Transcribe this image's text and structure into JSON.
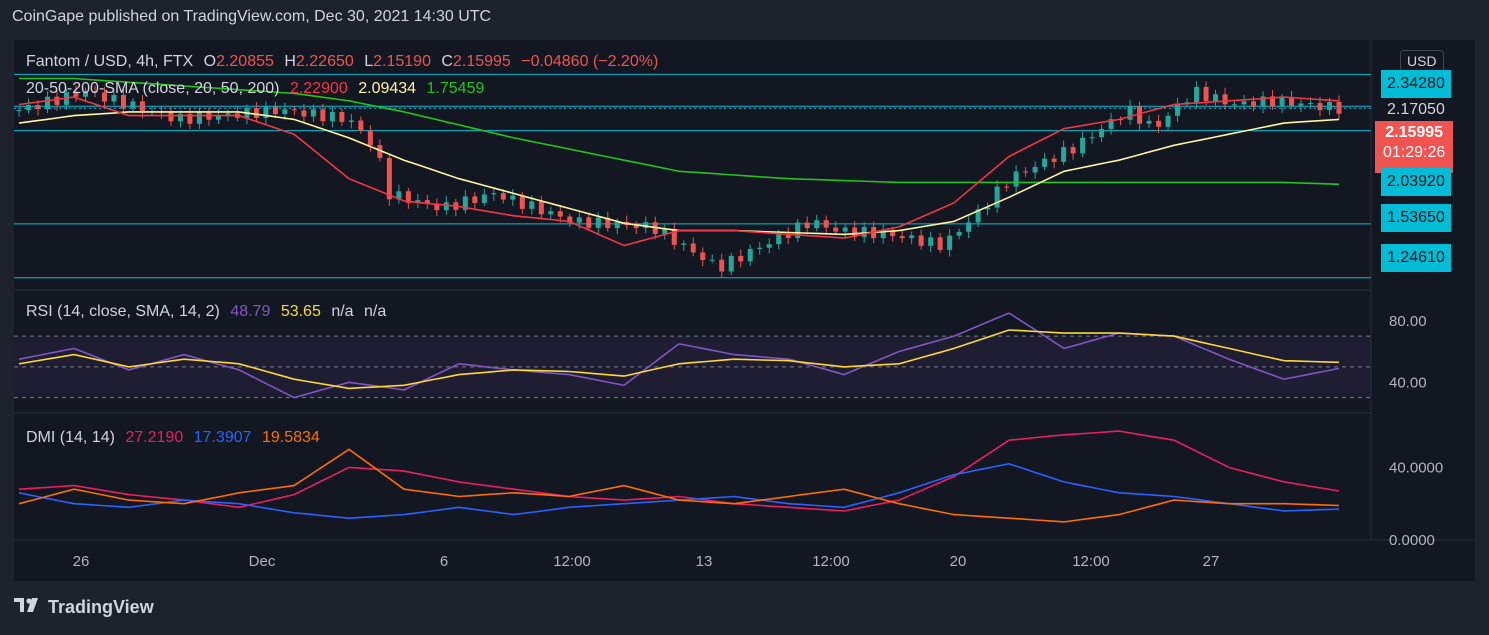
{
  "header": {
    "publisher": "CoinGape published on TradingView.com, Dec 30, 2021 14:30 UTC"
  },
  "footer": {
    "brand": "TradingView"
  },
  "symbol": {
    "title": "Fantom / USD, 4h, FTX",
    "open_label": "O",
    "open": "2.20855",
    "high_label": "H",
    "high": "2.22650",
    "low_label": "L",
    "low": "2.15190",
    "close_label": "C",
    "close": "2.15995",
    "change": "−0.04860 (−2.20%)"
  },
  "sma_legend": {
    "label": "20-50-200-SMA (close, 20, 50, 200)",
    "sma20": "2.22900",
    "sma50": "2.09434",
    "sma200": "1.75459"
  },
  "rsi_legend": {
    "label": "RSI (14, close, SMA, 14, 2)",
    "rsi": "48.79",
    "sma": "53.65",
    "na1": "n/a",
    "na2": "n/a"
  },
  "dmi_legend": {
    "label": "DMI (14, 14)",
    "adx": "27.2190",
    "plus_di": "17.3907",
    "minus_di": "19.5834"
  },
  "price_axis": {
    "currency": "USD",
    "levels": [
      "2.34280",
      "2.17050",
      "2.03920",
      "1.53650",
      "1.24610"
    ],
    "current_price": "2.15995",
    "countdown": "01:29:26"
  },
  "rsi_axis": [
    "80.00",
    "40.00"
  ],
  "dmi_axis": [
    "40.0000",
    "0.0000"
  ],
  "time_axis": [
    "26",
    "Dec",
    "6",
    "12:00",
    "13",
    "12:00",
    "20",
    "12:00",
    "27"
  ],
  "colors": {
    "up": "#26a69a",
    "down": "#ef5350",
    "sma20": "#f23645",
    "sma50": "#fff59d",
    "sma200": "#22c31b",
    "rsi": "#7e57c2",
    "rsi_sma": "#fdd835",
    "adx": "#e91e63",
    "plus_di": "#2962ff",
    "minus_di": "#ff6d00",
    "level_line": "#00bcd4",
    "level_tag": "#00bcd4",
    "current_tag": "#f05350"
  },
  "chart_data": {
    "type": "line",
    "instrument": "Fantom / USD, 4h, FTX",
    "price": {
      "anchors_x": [
        0,
        0.05,
        0.12,
        0.2,
        0.25,
        0.27,
        0.28,
        0.32,
        0.36,
        0.42,
        0.48,
        0.53,
        0.6,
        0.62,
        0.66,
        0.7,
        0.73,
        0.75,
        0.8,
        0.84,
        0.86,
        0.89,
        0.92,
        0.95,
        1.0
      ],
      "anchors_y": [
        2.15,
        2.25,
        2.1,
        2.15,
        2.1,
        1.95,
        1.7,
        1.62,
        1.7,
        1.55,
        1.52,
        1.3,
        1.55,
        1.5,
        1.48,
        1.42,
        1.62,
        1.78,
        1.95,
        2.15,
        2.05,
        2.25,
        2.18,
        2.2,
        2.16
      ],
      "candles": 140,
      "ylim": [
        1.18,
        2.42
      ]
    },
    "sma20_y": [
      2.18,
      2.22,
      2.12,
      2.12,
      2.12,
      2.02,
      1.78,
      1.66,
      1.63,
      1.58,
      1.55,
      1.42,
      1.5,
      1.5,
      1.48,
      1.46,
      1.52,
      1.65,
      1.9,
      2.05,
      2.1,
      2.18,
      2.2,
      2.22,
      2.2
    ],
    "sma50_y": [
      2.08,
      2.12,
      2.14,
      2.14,
      2.14,
      2.1,
      2.0,
      1.88,
      1.78,
      1.7,
      1.62,
      1.54,
      1.5,
      1.5,
      1.49,
      1.48,
      1.5,
      1.55,
      1.68,
      1.82,
      1.88,
      1.96,
      2.02,
      2.08,
      2.1
    ],
    "sma200_y": [
      2.32,
      2.32,
      2.3,
      2.28,
      2.26,
      2.24,
      2.2,
      2.14,
      2.07,
      2.0,
      1.94,
      1.88,
      1.82,
      1.8,
      1.78,
      1.77,
      1.76,
      1.76,
      1.76,
      1.76,
      1.76,
      1.76,
      1.76,
      1.76,
      1.75
    ],
    "rsi_y": [
      55,
      62,
      48,
      58,
      48,
      30,
      40,
      35,
      52,
      48,
      45,
      38,
      65,
      58,
      55,
      45,
      60,
      70,
      85,
      62,
      72,
      70,
      55,
      42,
      49
    ],
    "rsi_sma_y": [
      52,
      58,
      50,
      55,
      52,
      42,
      36,
      38,
      45,
      48,
      47,
      44,
      52,
      55,
      54,
      50,
      52,
      62,
      74,
      72,
      72,
      70,
      62,
      54,
      53
    ],
    "rsi_ylim": [
      20,
      100
    ],
    "adx_y": [
      28,
      30,
      25,
      22,
      18,
      25,
      40,
      38,
      32,
      28,
      24,
      22,
      24,
      20,
      18,
      16,
      22,
      35,
      55,
      58,
      60,
      55,
      40,
      32,
      27
    ],
    "plus_di_y": [
      26,
      20,
      18,
      22,
      20,
      15,
      12,
      14,
      18,
      14,
      18,
      20,
      22,
      24,
      20,
      18,
      26,
      36,
      42,
      32,
      26,
      24,
      20,
      16,
      17
    ],
    "minus_di_y": [
      20,
      28,
      22,
      20,
      26,
      30,
      50,
      28,
      24,
      26,
      24,
      30,
      22,
      20,
      24,
      28,
      20,
      14,
      12,
      10,
      14,
      22,
      20,
      20,
      19
    ],
    "dmi_ylim": [
      0,
      70
    ]
  }
}
